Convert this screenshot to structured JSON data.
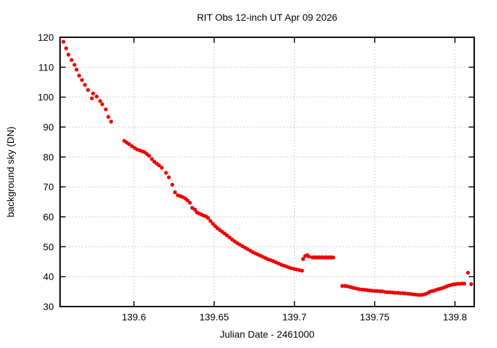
{
  "chart_data": {
    "type": "scatter",
    "title": "RIT Obs 12-inch UT Apr 09 2026",
    "xlabel": "Julian Date - 2461000",
    "ylabel": "background sky (DN)",
    "xlim": [
      139.554,
      139.812
    ],
    "ylim": [
      30,
      120
    ],
    "grid": true,
    "legend": false,
    "marker": {
      "shape": "filled-circle",
      "color": "#ee0000",
      "radius": 2.8
    },
    "frame_color": "#000000",
    "grid_color": "#b8b8b8",
    "xticks": {
      "values": [
        139.6,
        139.65,
        139.7,
        139.75,
        139.8
      ],
      "labels": [
        "139.6",
        "139.65",
        "139.7",
        "139.75",
        "139.8"
      ]
    },
    "yticks": {
      "values": [
        30,
        40,
        50,
        60,
        70,
        80,
        90,
        100,
        110,
        120
      ],
      "labels": [
        "30",
        "40",
        "50",
        "60",
        "70",
        "80",
        "90",
        "100",
        "110",
        "120"
      ]
    },
    "series": [
      {
        "name": "background sky (DN)",
        "points": [
          [
            139.5561,
            118.5
          ],
          [
            139.5578,
            116.3
          ],
          [
            139.5592,
            114.2
          ],
          [
            139.5612,
            112.4
          ],
          [
            139.563,
            110.8
          ],
          [
            139.5643,
            109.2
          ],
          [
            139.5659,
            107.2
          ],
          [
            139.5677,
            105.7
          ],
          [
            139.5695,
            104.1
          ],
          [
            139.5714,
            102.4
          ],
          [
            139.5738,
            99.6
          ],
          [
            139.5746,
            101.2
          ],
          [
            139.5768,
            100.2
          ],
          [
            139.579,
            98.7
          ],
          [
            139.5803,
            97.6
          ],
          [
            139.5825,
            95.9
          ],
          [
            139.5841,
            93.4
          ],
          [
            139.5858,
            91.8
          ],
          [
            139.594,
            85.4
          ],
          [
            139.5955,
            84.8
          ],
          [
            139.597,
            84.3
          ],
          [
            139.5988,
            83.6
          ],
          [
            139.6005,
            83.0
          ],
          [
            139.602,
            82.5
          ],
          [
            139.6036,
            82.2
          ],
          [
            139.6052,
            81.9
          ],
          [
            139.6066,
            81.6
          ],
          [
            139.6081,
            81.0
          ],
          [
            139.6095,
            80.4
          ],
          [
            139.6112,
            79.3
          ],
          [
            139.6127,
            78.4
          ],
          [
            139.6142,
            77.8
          ],
          [
            139.6157,
            77.2
          ],
          [
            139.6174,
            76.4
          ],
          [
            139.62,
            74.7
          ],
          [
            139.6218,
            73.2
          ],
          [
            139.6239,
            70.7
          ],
          [
            139.6256,
            68.2
          ],
          [
            139.6274,
            67.2
          ],
          [
            139.629,
            66.9
          ],
          [
            139.6305,
            66.6
          ],
          [
            139.632,
            66.1
          ],
          [
            139.6334,
            65.5
          ],
          [
            139.6349,
            64.7
          ],
          [
            139.6363,
            63.0
          ],
          [
            139.638,
            62.4
          ],
          [
            139.6392,
            61.5
          ],
          [
            139.6406,
            61.1
          ],
          [
            139.642,
            60.8
          ],
          [
            139.6434,
            60.4
          ],
          [
            139.6448,
            60.2
          ],
          [
            139.6462,
            59.6
          ],
          [
            139.6477,
            58.6
          ],
          [
            139.6492,
            57.7
          ],
          [
            139.6506,
            56.9
          ],
          [
            139.652,
            56.2
          ],
          [
            139.6535,
            55.6
          ],
          [
            139.655,
            55.0
          ],
          [
            139.6565,
            54.4
          ],
          [
            139.658,
            53.8
          ],
          [
            139.6596,
            53.1
          ],
          [
            139.6612,
            52.4
          ],
          [
            139.6628,
            51.8
          ],
          [
            139.6644,
            51.2
          ],
          [
            139.666,
            50.7
          ],
          [
            139.6676,
            50.2
          ],
          [
            139.6692,
            49.7
          ],
          [
            139.6708,
            49.2
          ],
          [
            139.6724,
            48.7
          ],
          [
            139.674,
            48.2
          ],
          [
            139.6756,
            47.8
          ],
          [
            139.6772,
            47.4
          ],
          [
            139.6788,
            47.0
          ],
          [
            139.6804,
            46.6
          ],
          [
            139.682,
            46.2
          ],
          [
            139.6836,
            45.8
          ],
          [
            139.6852,
            45.5
          ],
          [
            139.6868,
            45.2
          ],
          [
            139.6884,
            44.8
          ],
          [
            139.6901,
            44.4
          ],
          [
            139.6917,
            44.0
          ],
          [
            139.6933,
            43.7
          ],
          [
            139.6949,
            43.4
          ],
          [
            139.6965,
            43.1
          ],
          [
            139.6981,
            42.8
          ],
          [
            139.6998,
            42.6
          ],
          [
            139.7014,
            42.4
          ],
          [
            139.7031,
            42.2
          ],
          [
            139.7048,
            42.0
          ],
          [
            139.7054,
            45.9
          ],
          [
            139.7067,
            46.9
          ],
          [
            139.708,
            47.2
          ],
          [
            139.7091,
            46.7
          ],
          [
            139.7112,
            46.4
          ],
          [
            139.712,
            46.4
          ],
          [
            139.7128,
            46.5
          ],
          [
            139.7135,
            46.4
          ],
          [
            139.7143,
            46.4
          ],
          [
            139.7151,
            46.5
          ],
          [
            139.7158,
            46.4
          ],
          [
            139.7166,
            46.4
          ],
          [
            139.7174,
            46.5
          ],
          [
            139.7181,
            46.4
          ],
          [
            139.7189,
            46.4
          ],
          [
            139.7197,
            46.5
          ],
          [
            139.7204,
            46.4
          ],
          [
            139.7212,
            46.4
          ],
          [
            139.722,
            46.5
          ],
          [
            139.7227,
            46.4
          ],
          [
            139.7235,
            46.4
          ],
          [
            139.7242,
            46.4
          ],
          [
            139.7298,
            36.9
          ],
          [
            139.7315,
            36.9
          ],
          [
            139.7329,
            36.8
          ],
          [
            139.7344,
            36.6
          ],
          [
            139.7358,
            36.4
          ],
          [
            139.7372,
            36.2
          ],
          [
            139.7389,
            36.0
          ],
          [
            139.7404,
            35.8
          ],
          [
            139.7421,
            35.7
          ],
          [
            139.7437,
            35.6
          ],
          [
            139.7453,
            35.5
          ],
          [
            139.7468,
            35.4
          ],
          [
            139.7484,
            35.3
          ],
          [
            139.7501,
            35.2
          ],
          [
            139.7516,
            35.2
          ],
          [
            139.7533,
            35.1
          ],
          [
            139.7547,
            35.1
          ],
          [
            139.7564,
            34.9
          ],
          [
            139.758,
            34.8
          ],
          [
            139.7596,
            34.8
          ],
          [
            139.7613,
            34.7
          ],
          [
            139.7627,
            34.6
          ],
          [
            139.7645,
            34.6
          ],
          [
            139.7659,
            34.5
          ],
          [
            139.7676,
            34.5
          ],
          [
            139.769,
            34.4
          ],
          [
            139.7707,
            34.3
          ],
          [
            139.7723,
            34.2
          ],
          [
            139.7739,
            34.1
          ],
          [
            139.7755,
            34.0
          ],
          [
            139.7772,
            33.9
          ],
          [
            139.7788,
            33.9
          ],
          [
            139.7802,
            34.0
          ],
          [
            139.7817,
            34.2
          ],
          [
            139.7833,
            34.6
          ],
          [
            139.7845,
            35.0
          ],
          [
            139.786,
            35.2
          ],
          [
            139.7874,
            35.4
          ],
          [
            139.7889,
            35.7
          ],
          [
            139.7903,
            35.9
          ],
          [
            139.7917,
            36.1
          ],
          [
            139.7932,
            36.4
          ],
          [
            139.7946,
            36.7
          ],
          [
            139.796,
            37.0
          ],
          [
            139.7975,
            37.2
          ],
          [
            139.7989,
            37.4
          ],
          [
            139.8003,
            37.5
          ],
          [
            139.8017,
            37.6
          ],
          [
            139.8031,
            37.6
          ],
          [
            139.8045,
            37.7
          ],
          [
            139.8058,
            37.7
          ],
          [
            139.8081,
            41.3
          ],
          [
            139.8101,
            37.5
          ]
        ]
      }
    ]
  }
}
